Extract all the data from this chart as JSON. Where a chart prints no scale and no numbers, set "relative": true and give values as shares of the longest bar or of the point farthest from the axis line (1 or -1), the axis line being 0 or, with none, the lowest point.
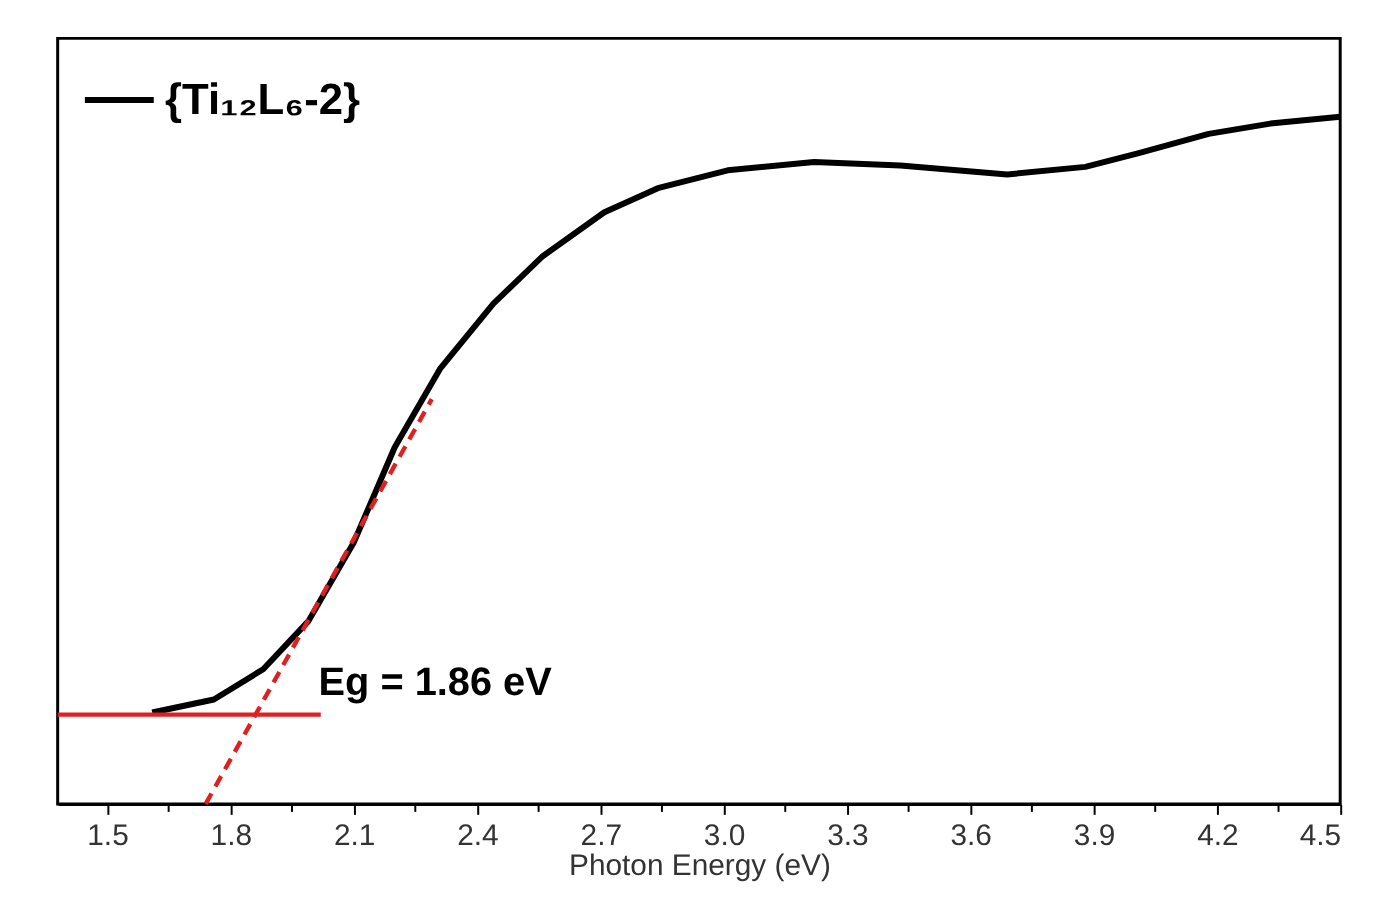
{
  "chart_data": {
    "type": "line",
    "relative": true,
    "xlabel": "Photon Energy (eV)",
    "xlim": [
      1.38,
      4.5
    ],
    "xticks": [
      1.5,
      {
        "value": 1.65,
        "label": null
      },
      1.8,
      {
        "value": 1.95,
        "label": null
      },
      2.1,
      {
        "value": 2.25,
        "label": null
      },
      2.4,
      {
        "value": 2.55,
        "label": null
      },
      2.7,
      {
        "value": 2.85,
        "label": null
      },
      {
        "value": 3.0,
        "label": "3.0"
      },
      {
        "value": 3.15,
        "label": null
      },
      3.3,
      {
        "value": 3.45,
        "label": null
      },
      3.6,
      {
        "value": 3.75,
        "label": null
      },
      3.9,
      {
        "value": 4.05,
        "label": null
      },
      4.2,
      {
        "value": 4.35,
        "label": null
      },
      4.5
    ],
    "legend": "top left",
    "grid": false,
    "series": [
      {
        "name": "{Ti₁₂L₆-2}",
        "color": "#000000",
        "x": [
          1.61,
          1.76,
          1.88,
          1.99,
          2.1,
          2.2,
          2.31,
          2.44,
          2.56,
          2.71,
          2.84,
          3.01,
          3.22,
          3.43,
          3.69,
          3.88,
          4.01,
          4.18,
          4.33,
          4.5
        ],
        "values": [
          0.133,
          0.152,
          0.196,
          0.266,
          0.38,
          0.519,
          0.633,
          0.728,
          0.797,
          0.861,
          0.896,
          0.922,
          0.934,
          0.929,
          0.916,
          0.927,
          0.947,
          0.975,
          0.99,
          1.0
        ]
      },
      {
        "type": "line",
        "color": "#e02020",
        "line_style": "solid",
        "x": [
          1.38,
          2.02
        ],
        "values": [
          0.13,
          0.13
        ]
      },
      {
        "type": "line",
        "color": "#e02020",
        "line_style": "dashed",
        "x": [
          1.74,
          2.29
        ],
        "values": [
          0.0,
          0.589
        ]
      }
    ],
    "annotations": [
      {
        "text": "Eg = 1.86 eV",
        "x": 1.86,
        "y": 0.13
      }
    ]
  }
}
